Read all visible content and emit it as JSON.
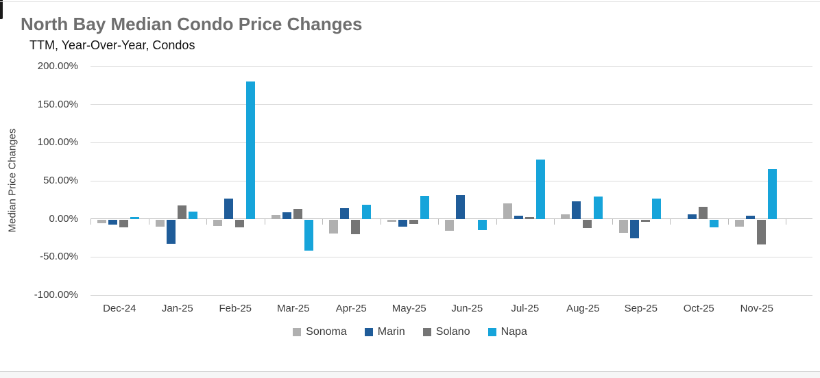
{
  "page": {
    "title": "North Bay Median Condo Price Changes",
    "subtitle": "TTM, Year-Over-Year, Condos"
  },
  "colors": {
    "title_text": "#6e6e6e",
    "axis_text": "#3d3d3d",
    "gridline": "#dadada",
    "zero_axis": "#b9b9b9",
    "sonoma": "#b0b0b0",
    "marin": "#1f5c99",
    "solano": "#757575",
    "napa": "#16a4da"
  },
  "chart_data": {
    "type": "bar",
    "title": "North Bay Median Condo Price Changes",
    "subtitle": "TTM, Year-Over-Year, Condos",
    "xlabel": "",
    "ylabel": "Median Price Changes",
    "ylim": [
      -100,
      200
    ],
    "ytick_step": 50,
    "ytick_labels": [
      "200.00%",
      "150.00%",
      "100.00%",
      "50.00%",
      "0.00%",
      "-50.00%",
      "-100.00%"
    ],
    "grid": true,
    "legend_position": "bottom",
    "value_unit": "percent",
    "categories": [
      "Dec-24",
      "Jan-25",
      "Feb-25",
      "Mar-25",
      "Apr-25",
      "May-25",
      "Jun-25",
      "Jul-25",
      "Aug-25",
      "Sep-25",
      "Oct-25",
      "Nov-25"
    ],
    "series": [
      {
        "name": "Sonoma",
        "color": "#b0b0b0",
        "values": [
          -5,
          -9,
          -8,
          5,
          -18,
          -3,
          -15,
          20,
          6,
          -17,
          0,
          -9
        ]
      },
      {
        "name": "Marin",
        "color": "#1f5c99",
        "values": [
          -7,
          -32,
          27,
          9,
          14,
          -9,
          31,
          4,
          23,
          -25,
          6,
          4
        ]
      },
      {
        "name": "Solano",
        "color": "#757575",
        "values": [
          -10,
          18,
          -10,
          13,
          -19,
          -6,
          0,
          2,
          -11,
          -3,
          16,
          -33
        ]
      },
      {
        "name": "Napa",
        "color": "#16a4da",
        "values": [
          2,
          10,
          180,
          -41,
          19,
          30,
          -14,
          78,
          29,
          27,
          -10,
          65
        ]
      }
    ]
  }
}
